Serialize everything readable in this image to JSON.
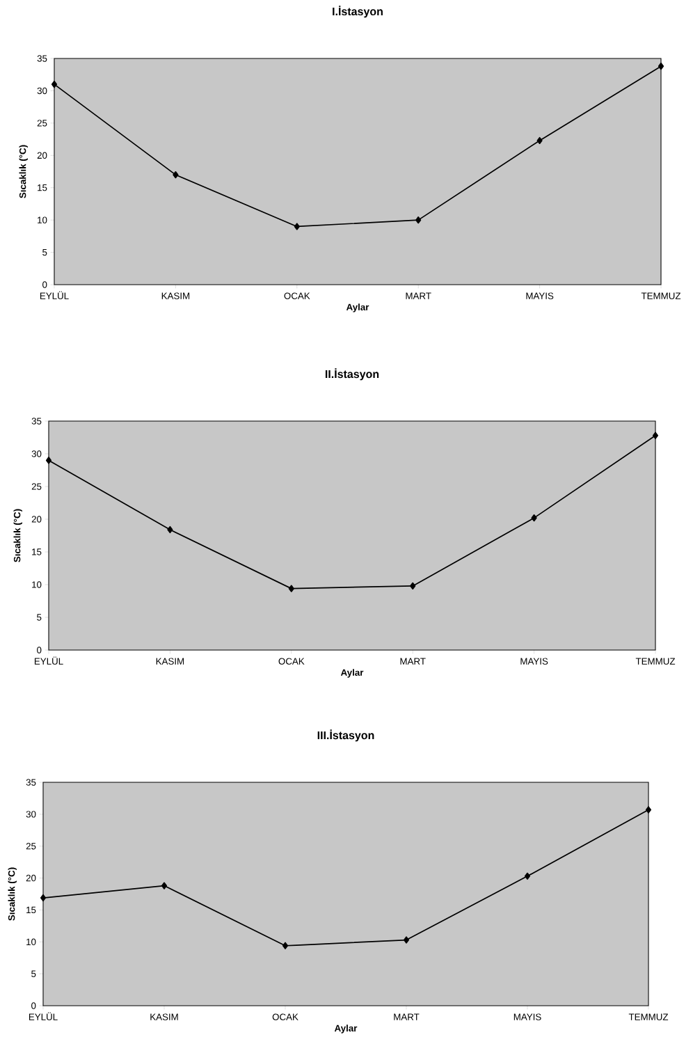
{
  "chart_data": [
    {
      "type": "line",
      "title": "I.İstasyon",
      "xlabel": "Aylar",
      "ylabel": "Sıcaklık (°C)",
      "categories": [
        "EYLÜL",
        "KASIM",
        "OCAK",
        "MART",
        "MAYIS",
        "TEMMUZ"
      ],
      "values": [
        31,
        17,
        9,
        10,
        22.3,
        33.8
      ],
      "color": "#000000",
      "marker": "diamond",
      "ylim": [
        0,
        35
      ],
      "yticks": [
        0,
        5,
        10,
        15,
        20,
        25,
        30,
        35
      ],
      "grid": false
    },
    {
      "type": "line",
      "title": "II.İstasyon",
      "xlabel": "Aylar",
      "ylabel": "Sıcaklık (°C)",
      "categories": [
        "EYLÜL",
        "KASIM",
        "OCAK",
        "MART",
        "MAYIS",
        "TEMMUZ"
      ],
      "values": [
        29,
        18.4,
        9.4,
        9.8,
        20.2,
        32.8
      ],
      "color": "#000000",
      "marker": "diamond",
      "ylim": [
        0,
        35
      ],
      "yticks": [
        0,
        5,
        10,
        15,
        20,
        25,
        30,
        35
      ],
      "grid": false
    },
    {
      "type": "line",
      "title": "III.İstasyon",
      "xlabel": "Aylar",
      "ylabel": "Sıcaklık (°C)",
      "categories": [
        "EYLÜL",
        "KASIM",
        "OCAK",
        "MART",
        "MAYIS",
        "TEMMUZ"
      ],
      "values": [
        16.9,
        18.8,
        9.4,
        10.3,
        20.3,
        30.7
      ],
      "color": "#000000",
      "marker": "diamond",
      "ylim": [
        0,
        35
      ],
      "yticks": [
        0,
        5,
        10,
        15,
        20,
        25,
        30,
        35
      ],
      "grid": false
    }
  ]
}
